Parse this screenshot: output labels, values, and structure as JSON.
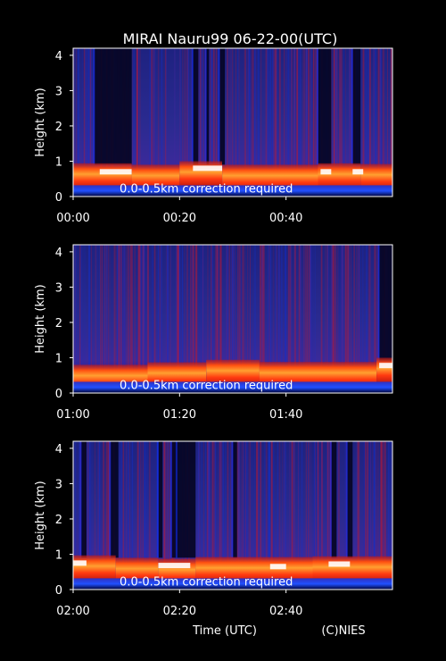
{
  "chart_data": {
    "type": "heatmap",
    "title": "MIRAI Nauru99 06-22-00(UTC)",
    "xlabel": "Time (UTC)",
    "ylabel": "Height (km)",
    "credit": "(C)NIES",
    "annotation": "0.0-0.5km correction required",
    "ylim": [
      0,
      4.2
    ],
    "yticks": [
      "0",
      "1",
      "2",
      "3",
      "4"
    ],
    "colors": {
      "background": "#000000",
      "text": "#ffffff",
      "low_signal": "#0a0a4a",
      "mid_signal": "#3a2a9a",
      "high_signal": "#e02010",
      "saturated": "#ffffff"
    },
    "panels": [
      {
        "xticks": [
          "00:00",
          "00:20",
          "00:40"
        ],
        "dark_gaps_min": [
          [
            4,
            11
          ],
          [
            22.5,
            23.5
          ],
          [
            25,
            25.5
          ],
          [
            27.5,
            28.5
          ],
          [
            46,
            48.5
          ],
          [
            52.5,
            54
          ]
        ],
        "cloud_base_km": [
          {
            "from_min": 0,
            "to_min": 11,
            "km": 0.72
          },
          {
            "from_min": 11,
            "to_min": 20,
            "km": 0.68
          },
          {
            "from_min": 20,
            "to_min": 28,
            "km": 0.78
          },
          {
            "from_min": 28,
            "to_min": 46,
            "km": 0.68
          },
          {
            "from_min": 46,
            "to_min": 54,
            "km": 0.72
          },
          {
            "from_min": 54,
            "to_min": 60,
            "km": 0.7
          }
        ],
        "saturated_km": [
          [
            5,
            11,
            0.7
          ],
          [
            22.5,
            28,
            0.8
          ],
          [
            46.5,
            48.5,
            0.7
          ],
          [
            52.5,
            54.5,
            0.7
          ]
        ]
      },
      {
        "xticks": [
          "01:00",
          "01:20",
          "01:40"
        ],
        "dark_gaps_min": [
          [
            57.5,
            60
          ]
        ],
        "cloud_base_km": [
          {
            "from_min": 0,
            "to_min": 14,
            "km": 0.58
          },
          {
            "from_min": 14,
            "to_min": 25,
            "km": 0.65
          },
          {
            "from_min": 25,
            "to_min": 35,
            "km": 0.72
          },
          {
            "from_min": 35,
            "to_min": 57,
            "km": 0.66
          },
          {
            "from_min": 57,
            "to_min": 60,
            "km": 0.78
          }
        ],
        "saturated_km": [
          [
            57.5,
            60,
            0.78
          ]
        ]
      },
      {
        "xticks": [
          "02:00",
          "02:20",
          "02:40"
        ],
        "dark_gaps_min": [
          [
            1.5,
            2.5
          ],
          [
            7,
            8.5
          ],
          [
            16,
            16.8
          ],
          [
            18.5,
            19.5
          ],
          [
            19.5,
            23
          ],
          [
            30,
            30.8
          ],
          [
            48.5,
            49.5
          ],
          [
            51.5,
            52.5
          ]
        ],
        "cloud_base_km": [
          {
            "from_min": 0,
            "to_min": 8,
            "km": 0.75
          },
          {
            "from_min": 8,
            "to_min": 16,
            "km": 0.68
          },
          {
            "from_min": 16,
            "to_min": 23,
            "km": 0.65
          },
          {
            "from_min": 23,
            "to_min": 45,
            "km": 0.7
          },
          {
            "from_min": 45,
            "to_min": 60,
            "km": 0.72
          }
        ],
        "saturated_km": [
          [
            0,
            2.5,
            0.75
          ],
          [
            16,
            22,
            0.68
          ],
          [
            37,
            40,
            0.65
          ],
          [
            48,
            52,
            0.72
          ]
        ]
      }
    ]
  }
}
